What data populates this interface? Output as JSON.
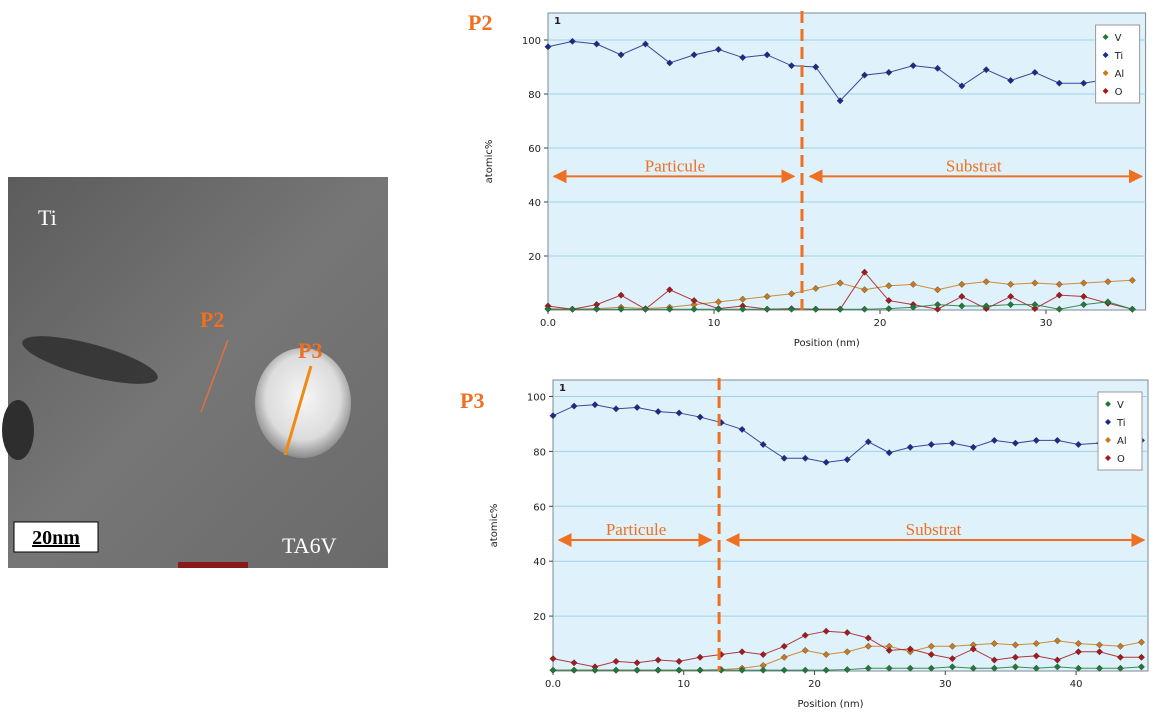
{
  "micrograph": {
    "labels": {
      "ti": "Ti",
      "p2": "P2",
      "p3": "P3",
      "scale": "20nm",
      "alloy": "TA6V"
    }
  },
  "chart_data": [
    {
      "type": "line",
      "panel": "P2",
      "corner": "1",
      "ylabel": "atomic%",
      "xlabel": "Position (nm)",
      "annotations": [
        "Particule",
        "Substrat"
      ],
      "boundary": 15.3,
      "x": [
        0,
        1.47,
        2.93,
        4.4,
        5.87,
        7.33,
        8.8,
        10.27,
        11.73,
        13.2,
        14.67,
        16.13,
        17.6,
        19.07,
        20.53,
        22,
        23.47,
        24.93,
        26.4,
        27.87,
        29.33,
        30.8,
        32.27,
        33.73,
        35.2
      ],
      "series": [
        {
          "name": "V",
          "color": "#1f7a3a",
          "values": [
            0.3,
            0.3,
            0.3,
            0.3,
            0.3,
            0.3,
            0.3,
            0.3,
            0.3,
            0.3,
            0.3,
            0.3,
            0.3,
            0.3,
            0.5,
            1,
            2,
            1.5,
            1.5,
            2,
            2,
            0.3,
            2,
            3,
            0.3
          ]
        },
        {
          "name": "Ti",
          "color": "#1c2a8c",
          "values": [
            97.5,
            99.5,
            98.5,
            94.5,
            98.5,
            91.5,
            94.5,
            96.5,
            93.5,
            94.5,
            90.5,
            90,
            77.5,
            87,
            88,
            90.5,
            89.5,
            83,
            89,
            85,
            88,
            84,
            84,
            85.5,
            86
          ]
        },
        {
          "name": "Al",
          "color": "#c97a1c",
          "values": [
            0.5,
            0.3,
            0.5,
            1,
            0.5,
            1,
            2,
            3,
            4,
            5,
            6,
            8,
            10,
            7.5,
            9,
            9.5,
            7.5,
            9.5,
            10.5,
            9.5,
            10,
            9.5,
            10,
            10.5,
            11
          ]
        },
        {
          "name": "O",
          "color": "#a8181c",
          "values": [
            1.5,
            0.3,
            2,
            5.5,
            0.3,
            7.5,
            3.5,
            0.5,
            1.5,
            0.3,
            0.5,
            0.3,
            0.3,
            14,
            3.5,
            2,
            0.3,
            5,
            0.5,
            5,
            0.5,
            5.5,
            5,
            2.5,
            0.3
          ]
        }
      ],
      "xlim": [
        0,
        36
      ],
      "ylim": [
        0,
        110
      ],
      "xticks": [
        {
          "value": 0,
          "label": "0.0"
        },
        10,
        20,
        30
      ],
      "yticks": [
        20,
        40,
        60,
        80,
        100
      ],
      "grid": true,
      "legend": "top-right"
    },
    {
      "type": "line",
      "panel": "P3",
      "corner": "1",
      "ylabel": "atomic%",
      "xlabel": "Position (nm)",
      "annotations": [
        "Particule",
        "Substrat"
      ],
      "boundary": 12.7,
      "x": [
        0,
        1.61,
        3.21,
        4.82,
        6.43,
        8.04,
        9.64,
        11.25,
        12.86,
        14.46,
        16.07,
        17.68,
        19.29,
        20.89,
        22.5,
        24.11,
        25.71,
        27.32,
        28.93,
        30.54,
        32.14,
        33.75,
        35.36,
        36.96,
        38.57,
        40.18,
        41.79,
        43.39,
        45
      ],
      "series": [
        {
          "name": "V",
          "color": "#1f7a3a",
          "values": [
            0.3,
            0.3,
            0.3,
            0.3,
            0.3,
            0.3,
            0.3,
            0.3,
            0.3,
            0.3,
            0.3,
            0.3,
            0.3,
            0.3,
            0.5,
            1,
            1,
            1,
            1,
            1.5,
            1,
            1,
            1.5,
            1,
            1.5,
            1,
            1,
            1,
            1.5
          ]
        },
        {
          "name": "Ti",
          "color": "#1c2a8c",
          "values": [
            93,
            96.5,
            97,
            95.5,
            96,
            94.5,
            94,
            92.5,
            90.5,
            88,
            82.5,
            77.5,
            77.5,
            76,
            77,
            83.5,
            79.5,
            81.5,
            82.5,
            83,
            81.5,
            84,
            83,
            84,
            84,
            82.5,
            83,
            84,
            84
          ]
        },
        {
          "name": "Al",
          "color": "#c97a1c",
          "values": [
            0.3,
            0.3,
            0.3,
            0.3,
            0.3,
            0.3,
            0.3,
            0.3,
            0.5,
            1,
            2,
            5,
            7.5,
            6,
            7,
            9,
            9,
            7,
            9,
            9,
            9.5,
            10,
            9.5,
            10,
            11,
            10,
            9.5,
            9,
            10.5
          ]
        },
        {
          "name": "O",
          "color": "#a8181c",
          "values": [
            4.5,
            3,
            1.5,
            3.5,
            3,
            4,
            3.5,
            5,
            6,
            7,
            6,
            9,
            13,
            14.5,
            14,
            12,
            7.5,
            8,
            6,
            4.5,
            8,
            4,
            5,
            5.5,
            4,
            7,
            7,
            5,
            5
          ]
        }
      ],
      "xlim": [
        0,
        45.5
      ],
      "ylim": [
        0,
        106
      ],
      "xticks": [
        {
          "value": 0,
          "label": "0.0"
        },
        10,
        20,
        30,
        40
      ],
      "yticks": [
        20,
        40,
        60,
        80,
        100
      ],
      "grid": true,
      "legend": "top-right"
    }
  ]
}
